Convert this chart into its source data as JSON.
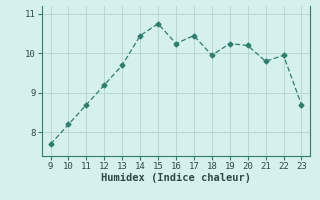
{
  "x": [
    9,
    10,
    11,
    12,
    13,
    14,
    15,
    16,
    17,
    18,
    19,
    20,
    21,
    22,
    23
  ],
  "y": [
    7.7,
    8.2,
    8.7,
    9.2,
    9.7,
    10.45,
    10.75,
    10.25,
    10.45,
    9.95,
    10.25,
    10.2,
    9.8,
    9.95,
    8.7
  ],
  "xlabel": "Humidex (Indice chaleur)",
  "xlim": [
    8.5,
    23.5
  ],
  "ylim": [
    7.4,
    11.2
  ],
  "yticks": [
    8,
    9,
    10,
    11
  ],
  "xticks": [
    9,
    10,
    11,
    12,
    13,
    14,
    15,
    16,
    17,
    18,
    19,
    20,
    21,
    22,
    23
  ],
  "line_color": "#2e7d6e",
  "marker": "D",
  "marker_size": 2.5,
  "bg_color": "#d6f0ee",
  "grid_color": "#b8d8d4",
  "line_width": 0.9
}
